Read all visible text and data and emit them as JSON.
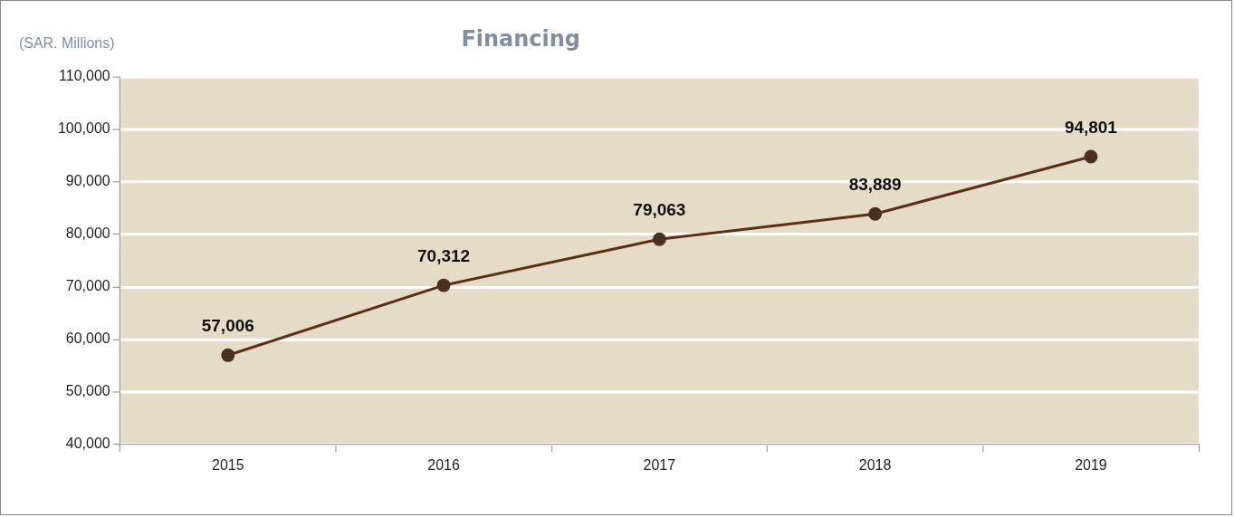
{
  "chart_data": {
    "type": "line",
    "title": "Financing",
    "ylabel": "(SAR. Millions)",
    "categories": [
      "2015",
      "2016",
      "2017",
      "2018",
      "2019"
    ],
    "series": [
      {
        "color": "#5c2f12",
        "values": [
          57006,
          70312,
          79063,
          83889,
          94801
        ],
        "value_labels": [
          "57,006",
          "70,312",
          "79,063",
          "83,889",
          "94,801"
        ]
      }
    ],
    "ylim": [
      40000,
      110000
    ],
    "yticks": [
      {
        "value": 40000,
        "label": "40,000"
      },
      {
        "value": 50000,
        "label": "50,000"
      },
      {
        "value": 60000,
        "label": "60,000"
      },
      {
        "value": 70000,
        "label": "70,000"
      },
      {
        "value": 80000,
        "label": "80,000"
      },
      {
        "value": 90000,
        "label": "90,000"
      },
      {
        "value": 100000,
        "label": "100,000"
      },
      {
        "value": 110000,
        "label": "110,000"
      }
    ],
    "grid": "y",
    "legend": false,
    "marker": "circle",
    "line_style": "solid"
  }
}
